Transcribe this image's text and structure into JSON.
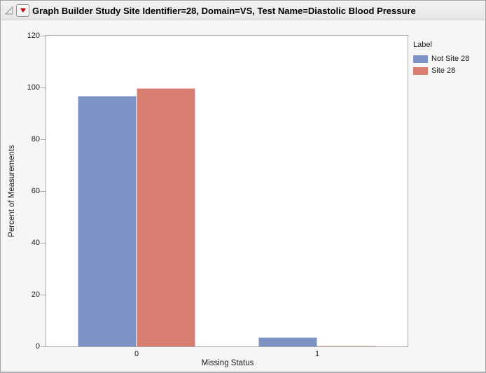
{
  "window": {
    "title_bar": {
      "title": "Graph Builder Study Site Identifier=28, Domain=VS, Test Name=Diastolic Blood Pressure",
      "disclosure_icon": "disclosure-triangle",
      "menu_icon": "red-triangle-menu"
    }
  },
  "colors": {
    "bar_blue": "#7D93C6",
    "bar_salmon": "#D87E70",
    "axis_line": "#A8A8A8",
    "plot_background": "#FFFFFF",
    "window_background": "#F6F6F6",
    "red_triangle": "#C40000"
  },
  "chart_data": {
    "type": "bar",
    "categories": [
      "0",
      "1"
    ],
    "series": [
      {
        "name": "Not Site 28",
        "color": "#7D93C6",
        "values": [
          96.8,
          3.4
        ]
      },
      {
        "name": "Site 28",
        "color": "#D87E70",
        "values": [
          99.7,
          0.4
        ]
      }
    ],
    "title": "",
    "xlabel": "Missing Status",
    "ylabel": "Percent of Measurements",
    "ylim": [
      0,
      120
    ],
    "yticks": [
      0,
      20,
      40,
      60,
      80,
      100,
      120
    ],
    "legend_title": "Label",
    "legend_position": "right",
    "grid": false
  }
}
